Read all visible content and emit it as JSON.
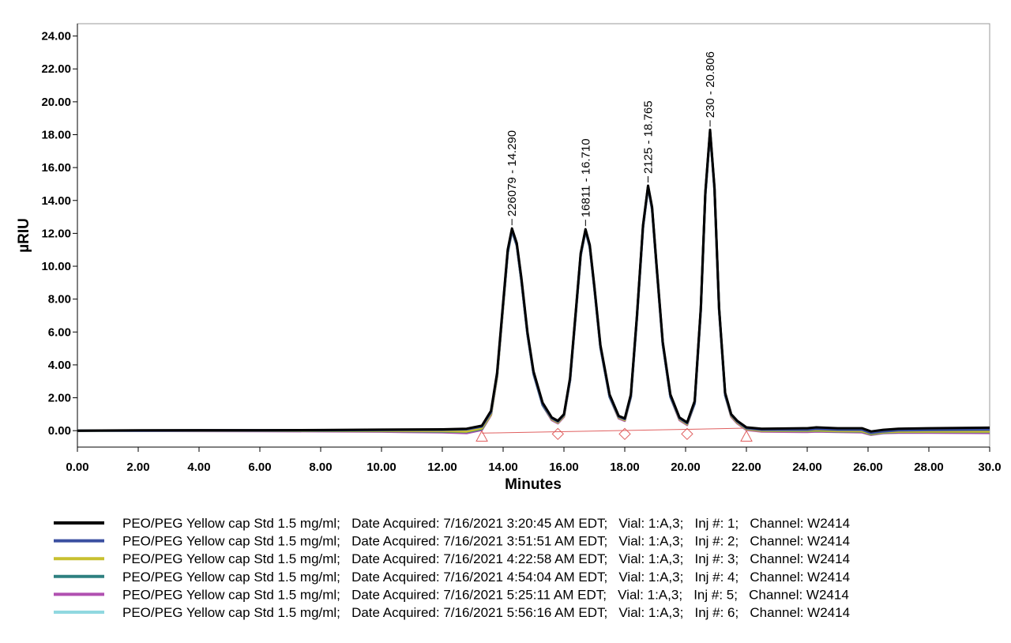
{
  "chart_data": {
    "type": "line",
    "xlabel": "Minutes",
    "ylabel": "µRIU",
    "xlim": [
      0,
      30
    ],
    "ylim": [
      -1,
      24.75
    ],
    "xticks": [
      {
        "value": 0,
        "label": "0.00"
      },
      {
        "value": 2,
        "label": "2.00"
      },
      {
        "value": 4,
        "label": "4.00"
      },
      {
        "value": 6,
        "label": "6.00"
      },
      {
        "value": 8,
        "label": "8.00"
      },
      {
        "value": 10,
        "label": "10.00"
      },
      {
        "value": 12,
        "label": "12.00"
      },
      {
        "value": 14,
        "label": "14.00"
      },
      {
        "value": 16,
        "label": "16.00"
      },
      {
        "value": 18,
        "label": "18.00"
      },
      {
        "value": 20,
        "label": "20.00"
      },
      {
        "value": 22,
        "label": "22.00"
      },
      {
        "value": 24,
        "label": "24.00"
      },
      {
        "value": 26,
        "label": "26.00"
      },
      {
        "value": 28,
        "label": "28.00"
      },
      {
        "value": 30,
        "label": "30.0"
      }
    ],
    "yticks": [
      {
        "value": 0,
        "label": "0.00"
      },
      {
        "value": 2,
        "label": "2.00"
      },
      {
        "value": 4,
        "label": "4.00"
      },
      {
        "value": 6,
        "label": "6.00"
      },
      {
        "value": 8,
        "label": "8.00"
      },
      {
        "value": 10,
        "label": "10.00"
      },
      {
        "value": 12,
        "label": "12.00"
      },
      {
        "value": 14,
        "label": "14.00"
      },
      {
        "value": 16,
        "label": "16.00"
      },
      {
        "value": 18,
        "label": "18.00"
      },
      {
        "value": 20,
        "label": "20.00"
      },
      {
        "value": 22,
        "label": "22.00"
      },
      {
        "value": 24,
        "label": "24.00"
      }
    ],
    "x": [
      0,
      2,
      4,
      6,
      8,
      10,
      12,
      12.8,
      13.3,
      13.6,
      13.8,
      14.0,
      14.15,
      14.29,
      14.45,
      14.6,
      14.8,
      15.0,
      15.3,
      15.6,
      15.8,
      16.0,
      16.2,
      16.4,
      16.55,
      16.71,
      16.85,
      17.0,
      17.2,
      17.5,
      17.8,
      18.0,
      18.2,
      18.4,
      18.6,
      18.765,
      18.9,
      19.05,
      19.25,
      19.5,
      19.8,
      20.05,
      20.3,
      20.5,
      20.65,
      20.806,
      20.95,
      21.1,
      21.3,
      21.5,
      21.7,
      22.0,
      22.5,
      24,
      24.3,
      25,
      25.8,
      26.1,
      26.5,
      27,
      28,
      30
    ],
    "series": [
      {
        "name": "PEO/PEG Yellow cap Std 1.5 mg/ml;   Date Acquired: 7/16/2021 3:20:45 AM EDT;   Vial: 1:A,3;   Inj #: 1;   Channel: W2414",
        "color": "#000000",
        "values": [
          0,
          0.02,
          0.03,
          0.03,
          0.04,
          0.06,
          0.08,
          0.12,
          0.3,
          1.2,
          3.5,
          7.8,
          11.0,
          12.3,
          11.4,
          9.3,
          6.0,
          3.6,
          1.7,
          0.8,
          0.6,
          1.0,
          3.2,
          7.5,
          10.8,
          12.25,
          11.3,
          8.8,
          5.2,
          2.2,
          0.9,
          0.75,
          2.2,
          7.0,
          12.5,
          14.9,
          13.6,
          10.0,
          5.4,
          2.2,
          0.8,
          0.5,
          1.8,
          7.5,
          14.5,
          18.3,
          14.8,
          7.5,
          2.3,
          1.0,
          0.6,
          0.2,
          0.12,
          0.15,
          0.2,
          0.15,
          0.15,
          -0.05,
          0.05,
          0.12,
          0.15,
          0.18
        ]
      },
      {
        "name": "PEO/PEG Yellow cap Std 1.5 mg/ml;   Date Acquired: 7/16/2021 3:51:51 AM EDT;   Vial: 1:A,3;   Inj #: 2;   Channel: W2414",
        "color": "#3a4fa0",
        "values": [
          0,
          0.01,
          0.02,
          0.02,
          0.03,
          0.04,
          0.05,
          0.08,
          0.25,
          1.1,
          3.4,
          7.7,
          10.9,
          12.2,
          11.3,
          9.2,
          5.9,
          3.5,
          1.6,
          0.75,
          0.55,
          0.95,
          3.1,
          7.4,
          10.7,
          12.2,
          11.2,
          8.7,
          5.1,
          2.1,
          0.85,
          0.7,
          2.1,
          6.9,
          12.4,
          14.85,
          13.5,
          9.9,
          5.3,
          2.1,
          0.75,
          0.45,
          1.7,
          7.4,
          14.4,
          18.2,
          14.7,
          7.4,
          2.2,
          0.95,
          0.55,
          0.15,
          0.05,
          0.05,
          0.1,
          0.05,
          0.05,
          -0.15,
          -0.05,
          0.02,
          0.04,
          0.06
        ]
      },
      {
        "name": "PEO/PEG Yellow cap Std 1.5 mg/ml;   Date Acquired: 7/16/2021 4:22:58 AM EDT;   Vial: 1:A,3;   Inj #: 3;   Channel: W2414",
        "color": "#c8c030",
        "values": [
          0,
          0.01,
          0.01,
          0.01,
          0.01,
          0.0,
          -0.02,
          -0.05,
          0.15,
          1.0,
          3.3,
          7.6,
          10.9,
          12.2,
          11.3,
          9.2,
          5.9,
          3.5,
          1.6,
          0.7,
          0.5,
          0.9,
          3.1,
          7.4,
          10.7,
          12.2,
          11.2,
          8.7,
          5.1,
          2.1,
          0.8,
          0.65,
          2.1,
          6.9,
          12.4,
          14.85,
          13.5,
          9.9,
          5.3,
          2.1,
          0.7,
          0.4,
          1.7,
          7.4,
          14.4,
          18.2,
          14.7,
          7.4,
          2.2,
          0.9,
          0.5,
          0.1,
          0.0,
          0.0,
          0.02,
          -0.02,
          -0.03,
          -0.2,
          -0.1,
          -0.06,
          -0.05,
          -0.05
        ]
      },
      {
        "name": "PEO/PEG Yellow cap Std 1.5 mg/ml;   Date Acquired: 7/16/2021 4:54:04 AM EDT;   Vial: 1:A,3;   Inj #: 4;   Channel: W2414",
        "color": "#2e8080",
        "values": [
          0,
          0.0,
          0.0,
          0.0,
          -0.01,
          -0.02,
          -0.05,
          -0.08,
          0.1,
          1.0,
          3.3,
          7.6,
          10.8,
          12.15,
          11.25,
          9.1,
          5.85,
          3.45,
          1.55,
          0.7,
          0.5,
          0.9,
          3.05,
          7.35,
          10.65,
          12.15,
          11.15,
          8.65,
          5.05,
          2.05,
          0.8,
          0.65,
          2.05,
          6.85,
          12.35,
          14.8,
          13.45,
          9.85,
          5.25,
          2.05,
          0.7,
          0.4,
          1.65,
          7.35,
          14.35,
          18.15,
          14.65,
          7.35,
          2.15,
          0.9,
          0.5,
          0.1,
          0.0,
          -0.02,
          0.0,
          -0.04,
          -0.05,
          -0.22,
          -0.12,
          -0.08,
          -0.07,
          -0.08
        ]
      },
      {
        "name": "PEO/PEG Yellow cap Std 1.5 mg/ml;   Date Acquired: 7/16/2021 5:25:11 AM EDT;   Vial: 1:A,3;   Inj #: 5;   Channel: W2414",
        "color": "#b050b0",
        "values": [
          0,
          -0.01,
          -0.02,
          -0.03,
          -0.04,
          -0.06,
          -0.1,
          -0.15,
          0.05,
          0.95,
          3.25,
          7.55,
          10.8,
          12.15,
          11.25,
          9.1,
          5.85,
          3.45,
          1.55,
          0.65,
          0.45,
          0.85,
          3.05,
          7.35,
          10.65,
          12.15,
          11.15,
          8.65,
          5.05,
          2.05,
          0.75,
          0.6,
          2.05,
          6.85,
          12.35,
          14.8,
          13.45,
          9.85,
          5.25,
          2.05,
          0.65,
          0.35,
          1.65,
          7.35,
          14.35,
          18.15,
          14.65,
          7.35,
          2.15,
          0.85,
          0.45,
          0.05,
          -0.05,
          -0.08,
          -0.05,
          -0.08,
          -0.1,
          -0.25,
          -0.15,
          -0.12,
          -0.12,
          -0.14
        ]
      },
      {
        "name": "PEO/PEG Yellow cap Std 1.5 mg/ml;   Date Acquired: 7/16/2021 5:56:16 AM EDT;   Vial: 1:A,3;   Inj #: 6;   Channel: W2414",
        "color": "#90d8e0",
        "values": [
          0,
          0.0,
          0.01,
          0.01,
          0.0,
          -0.01,
          -0.03,
          -0.06,
          0.12,
          1.0,
          3.3,
          7.6,
          10.8,
          12.2,
          11.3,
          9.15,
          5.9,
          3.5,
          1.6,
          0.7,
          0.5,
          0.9,
          3.1,
          7.4,
          10.7,
          12.2,
          11.2,
          8.7,
          5.1,
          2.1,
          0.8,
          0.65,
          2.1,
          6.9,
          12.4,
          14.85,
          13.5,
          9.9,
          5.3,
          2.1,
          0.7,
          0.4,
          1.7,
          7.4,
          14.4,
          18.2,
          14.7,
          7.4,
          2.2,
          0.9,
          0.5,
          0.1,
          0.0,
          -0.03,
          -0.01,
          -0.05,
          -0.06,
          -0.23,
          -0.13,
          -0.1,
          -0.09,
          -0.1
        ]
      }
    ],
    "baseline": {
      "color": "#e06060",
      "x": [
        13.3,
        22.0
      ],
      "values": [
        -0.15,
        0.15
      ]
    },
    "integration_marks": {
      "color": "#e06060",
      "x": [
        13.3,
        15.8,
        18.0,
        20.05,
        22.0
      ],
      "values": [
        -0.35,
        -0.2,
        -0.2,
        -0.2,
        -0.35
      ],
      "shapes": [
        "triangle",
        "diamond",
        "diamond",
        "diamond",
        "triangle"
      ]
    },
    "annotations": [
      {
        "text": "226079 - 14.290",
        "x": 14.29,
        "y": 12.3
      },
      {
        "text": "16811 - 16.710",
        "x": 16.71,
        "y": 12.25
      },
      {
        "text": "2125 - 18.765",
        "x": 18.765,
        "y": 14.9
      },
      {
        "text": "230 - 20.806",
        "x": 20.806,
        "y": 18.3
      }
    ]
  }
}
